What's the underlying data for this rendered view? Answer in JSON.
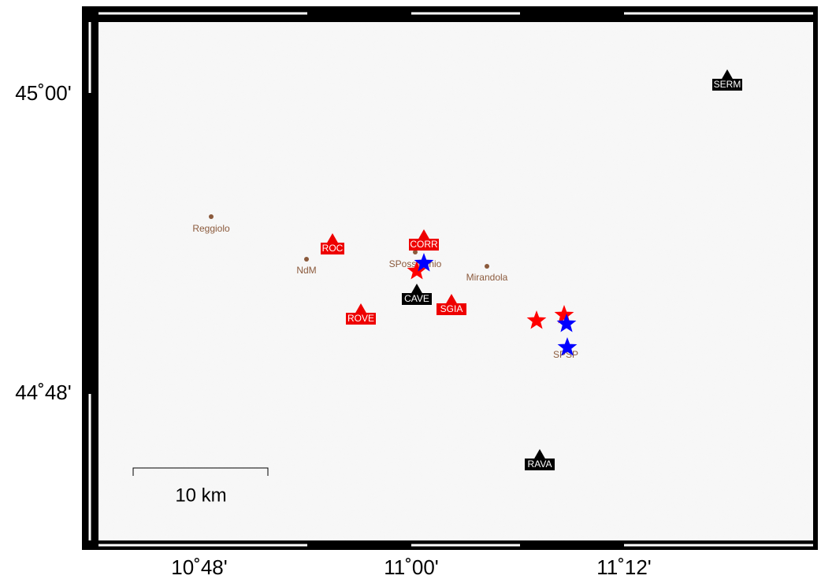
{
  "map": {
    "lat_labels": [
      "45˚00'",
      "44˚48'"
    ],
    "lon_labels": [
      "10˚48'",
      "11˚00'",
      "11˚12'"
    ],
    "towns": [
      {
        "label": "Reggiolo"
      },
      {
        "label": "NdM"
      },
      {
        "label": "SPossidonio"
      },
      {
        "label": "Mirandola"
      },
      {
        "label": "SPSP"
      }
    ],
    "stations": [
      {
        "label": "SERM"
      },
      {
        "label": "ROC"
      },
      {
        "label": "CORR"
      },
      {
        "label": "CAVE"
      },
      {
        "label": "SGIA"
      },
      {
        "label": "ROVE"
      },
      {
        "label": "RAVA"
      }
    ],
    "scale_bar": "10 km"
  }
}
